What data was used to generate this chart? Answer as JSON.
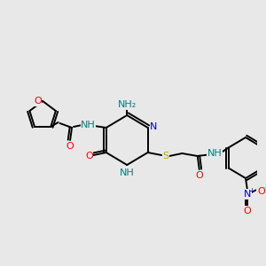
{
  "bg_color": "#e8e8e8",
  "colors": {
    "bond": "#000000",
    "N": "#0000cc",
    "O": "#ff0000",
    "S": "#aaaa00",
    "NH": "#008080",
    "C": "#000000"
  },
  "figsize": [
    3.0,
    3.0
  ],
  "dpi": 100
}
